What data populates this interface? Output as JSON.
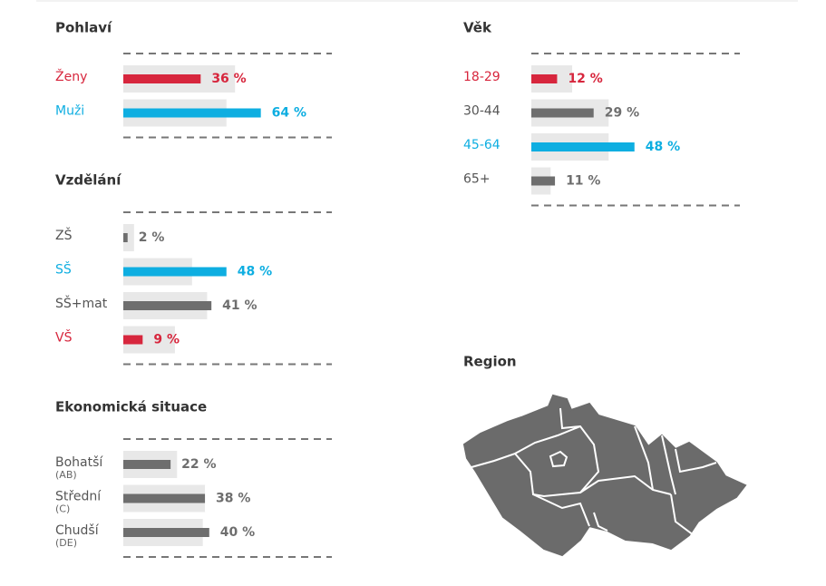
{
  "chart_data": [
    {
      "type": "bar",
      "orientation": "horizontal",
      "title": "Pohlaví",
      "categories": [
        "Ženy",
        "Muži"
      ],
      "values": [
        36,
        64
      ],
      "value_labels": [
        "36 %",
        "64 %"
      ],
      "colors": [
        "#d7263d",
        "#0eaee1"
      ],
      "reference_values": [
        52,
        48
      ],
      "reference_color": "#e8e8e8",
      "xlim": [
        0,
        100
      ]
    },
    {
      "type": "bar",
      "orientation": "horizontal",
      "title": "Vzdělání",
      "categories": [
        "ZŠ",
        "SŠ",
        "SŠ+mat",
        "VŠ"
      ],
      "values": [
        2,
        48,
        41,
        9
      ],
      "value_labels": [
        "2 %",
        "48 %",
        "41 %",
        "9 %"
      ],
      "colors": [
        "#6e6e6e",
        "#0eaee1",
        "#6e6e6e",
        "#d7263d"
      ],
      "reference_values": [
        5,
        32,
        39,
        24
      ],
      "reference_color": "#e8e8e8",
      "xlim": [
        0,
        100
      ]
    },
    {
      "type": "bar",
      "orientation": "horizontal",
      "title": "Ekonomická situace",
      "categories": [
        "Bohatší",
        "Střední",
        "Chudší"
      ],
      "category_notes": [
        "(AB)",
        "(C)",
        "(DE)"
      ],
      "values": [
        22,
        38,
        40
      ],
      "value_labels": [
        "22 %",
        "38 %",
        "40 %"
      ],
      "colors": [
        "#6e6e6e",
        "#6e6e6e",
        "#6e6e6e"
      ],
      "reference_values": [
        25,
        38,
        37
      ],
      "reference_color": "#e8e8e8",
      "xlim": [
        0,
        100
      ]
    },
    {
      "type": "bar",
      "orientation": "horizontal",
      "title": "Věk",
      "categories": [
        "18-29",
        "30-44",
        "45-64",
        "65+"
      ],
      "values": [
        12,
        29,
        48,
        11
      ],
      "value_labels": [
        "12 %",
        "29 %",
        "48 %",
        "11 %"
      ],
      "colors": [
        "#d7263d",
        "#6e6e6e",
        "#0eaee1",
        "#6e6e6e"
      ],
      "reference_values": [
        19,
        36,
        36,
        9
      ],
      "reference_color": "#e8e8e8",
      "xlim": [
        0,
        100
      ]
    }
  ],
  "map": {
    "title": "Region"
  }
}
